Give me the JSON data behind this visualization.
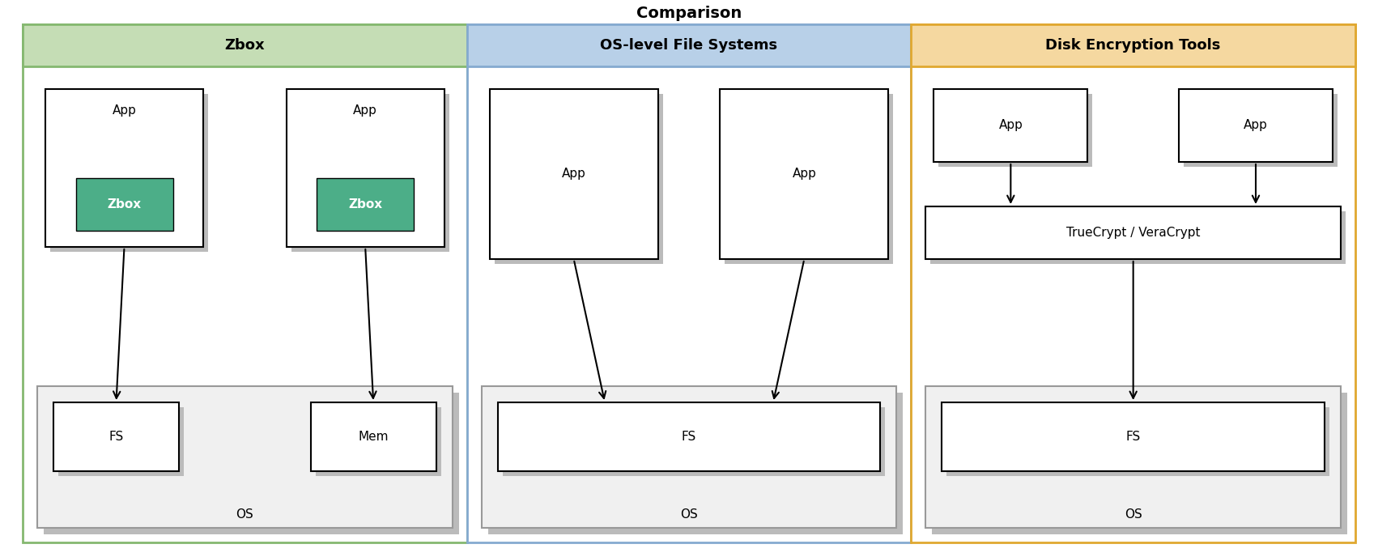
{
  "title": "Comparison",
  "title_fontsize": 14,
  "title_fontweight": "bold",
  "col1_label": "Zbox",
  "col2_label": "OS-level File Systems",
  "col3_label": "Disk Encryption Tools",
  "col1_header_color": "#c5ddb5",
  "col2_header_color": "#b8d0e8",
  "col3_header_color": "#f5d8a0",
  "col1_border_color": "#85b870",
  "col2_border_color": "#85aad0",
  "col3_border_color": "#e0a830",
  "header_text_color": "#000000",
  "bg_color": "#ffffff",
  "zbox_green": "#4cae88",
  "shadow_color": "#bbbbbb",
  "os_bg": "#f0f0f0",
  "os_edge": "#999999"
}
